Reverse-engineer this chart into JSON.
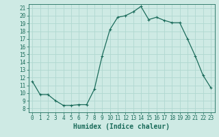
{
  "x": [
    0,
    1,
    2,
    3,
    4,
    5,
    6,
    7,
    8,
    9,
    10,
    11,
    12,
    13,
    14,
    15,
    16,
    17,
    18,
    19,
    20,
    21,
    22,
    23
  ],
  "y": [
    11.5,
    9.8,
    9.8,
    9.0,
    8.4,
    8.4,
    8.5,
    8.5,
    10.5,
    14.8,
    18.2,
    19.8,
    20.0,
    20.5,
    21.2,
    19.5,
    19.8,
    19.4,
    19.1,
    19.1,
    17.0,
    14.8,
    12.3,
    10.7
  ],
  "line_color": "#1a6b5a",
  "marker": "+",
  "markersize": 3,
  "linewidth": 0.9,
  "xlabel": "Humidex (Indice chaleur)",
  "xlabel_fontsize": 7,
  "bg_color": "#ceeae4",
  "grid_color": "#b0d8d0",
  "xlim": [
    -0.5,
    23.5
  ],
  "ylim": [
    7.5,
    21.5
  ],
  "yticks": [
    8,
    9,
    10,
    11,
    12,
    13,
    14,
    15,
    16,
    17,
    18,
    19,
    20,
    21
  ],
  "xticks": [
    0,
    1,
    2,
    3,
    4,
    5,
    6,
    7,
    8,
    9,
    10,
    11,
    12,
    13,
    14,
    15,
    16,
    17,
    18,
    19,
    20,
    21,
    22,
    23
  ],
  "tick_fontsize": 5.5,
  "tick_color": "#1a6b5a",
  "spine_color": "#1a6b5a"
}
